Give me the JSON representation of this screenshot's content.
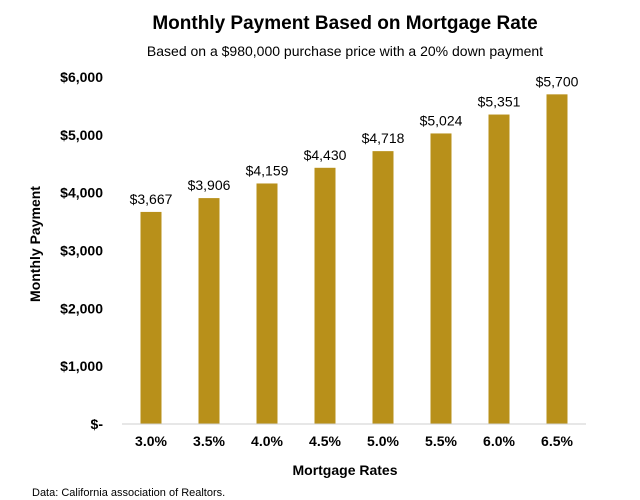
{
  "chart_data": {
    "type": "bar",
    "title": "Monthly Payment Based on Mortgage Rate",
    "subtitle": "Based on a $980,000 purchase price with a 20% down payment",
    "xlabel": "Mortgage Rates",
    "ylabel": "Monthly Payment",
    "categories": [
      "3.0%",
      "3.5%",
      "4.0%",
      "4.5%",
      "5.0%",
      "5.5%",
      "6.0%",
      "6.5%"
    ],
    "values": [
      3667,
      3906,
      4159,
      4430,
      4718,
      5024,
      5351,
      5700
    ],
    "data_labels": [
      "$3,667",
      "$3,906",
      "$4,159",
      "$4,430",
      "$4,718",
      "$5,024",
      "$5,351",
      "$5,700"
    ],
    "ylim": [
      0,
      6000
    ],
    "y_ticks": [
      0,
      1000,
      2000,
      3000,
      4000,
      5000,
      6000
    ],
    "y_tick_labels": [
      "$-",
      "$1,000",
      "$2,000",
      "$3,000",
      "$4,000",
      "$5,000",
      "$6,000"
    ],
    "grid": false,
    "bar_color": "#B8901A",
    "source": "Data: California association of Realtors."
  }
}
